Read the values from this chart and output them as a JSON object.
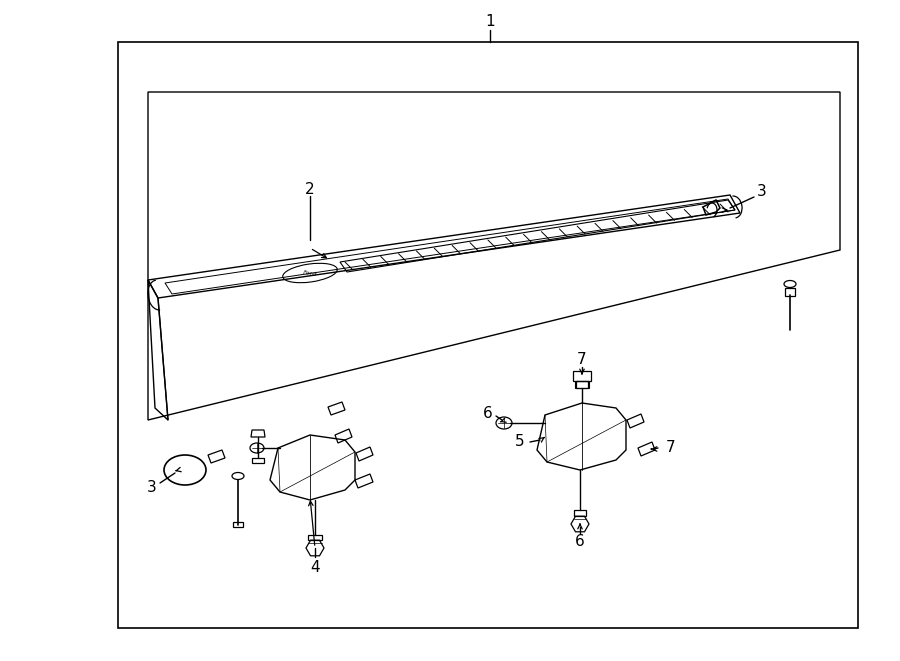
{
  "bg_color": "#ffffff",
  "line_color": "#000000",
  "fig_width": 9.0,
  "fig_height": 6.61,
  "dpi": 100,
  "label_1": "1",
  "label_2": "2",
  "label_3": "3",
  "label_4": "4",
  "label_5": "5",
  "label_6": "6",
  "label_7": "7"
}
